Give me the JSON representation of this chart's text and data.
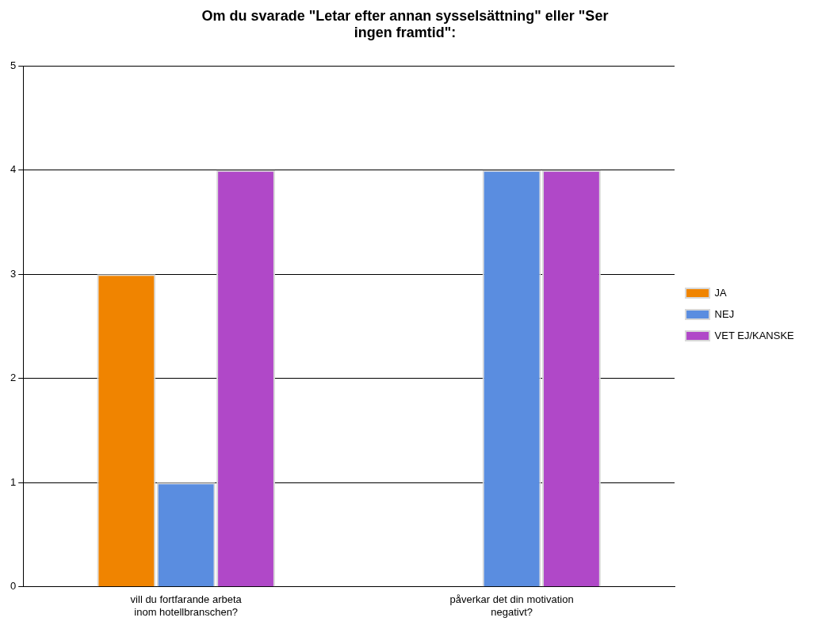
{
  "chart_data": {
    "type": "bar",
    "title": "Om du svarade \"Letar efter annan sysselsättning\" eller \"Ser ingen framtid\":",
    "categories": [
      "vill du fortfarande arbeta inom hotellbranschen?",
      "påverkar det din motivation negativt?"
    ],
    "series": [
      {
        "name": "JA",
        "color": "#f08400",
        "values": [
          3,
          0
        ]
      },
      {
        "name": "NEJ",
        "color": "#5a8de0",
        "values": [
          1,
          4
        ]
      },
      {
        "name": "VET EJ/KANSKE",
        "color": "#b048c8",
        "values": [
          4,
          4
        ]
      }
    ],
    "ylim": [
      0,
      5
    ],
    "yticks": [
      0,
      1,
      2,
      3,
      4,
      5
    ],
    "grid": "y",
    "legend": "right"
  }
}
